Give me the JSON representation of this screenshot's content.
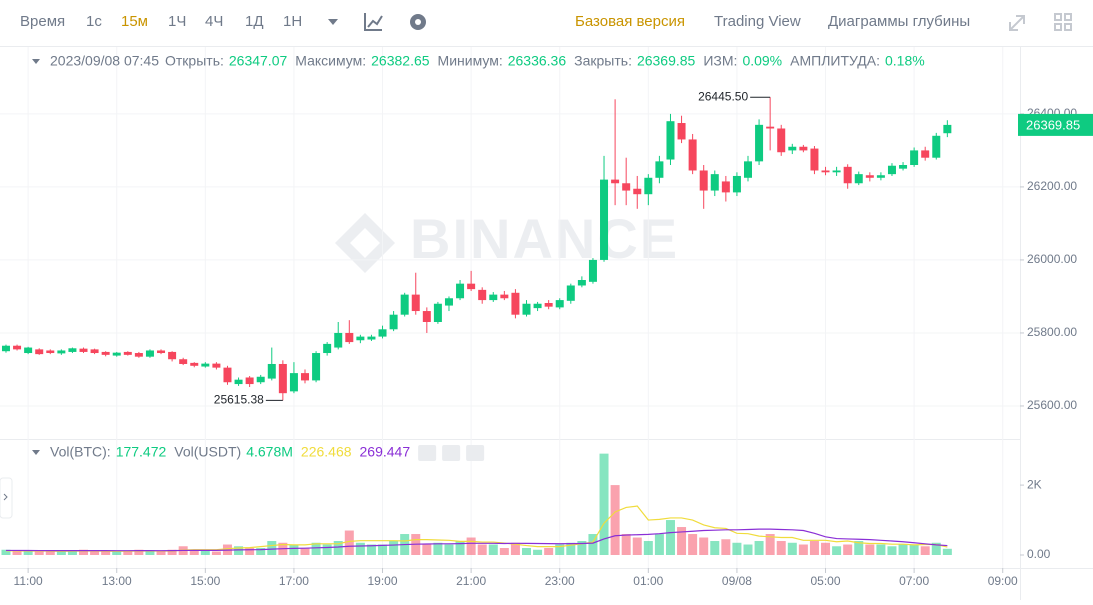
{
  "toolbar": {
    "intervals": [
      "Время",
      "1с",
      "15м",
      "1Ч",
      "4Ч",
      "1Д",
      "1Н"
    ],
    "views": [
      "Базовая версия",
      "Trading View",
      "Диаграммы глубины"
    ]
  },
  "chart_data": {
    "type": "candlestick",
    "header": {
      "datetime": "2023/09/08 07:45",
      "open_label": "Открыть:",
      "high_label": "Максимум:",
      "low_label": "Минимум:",
      "close_label": "Закрыть:",
      "change_label": "ИЗМ:",
      "change": "0.09%",
      "amplitude_label": "АМПЛИТУДА:",
      "amplitude": "0.18%"
    },
    "watermark": "BINANCE",
    "high_marker": "26445.50",
    "low_marker": "25615.38",
    "up_color": "#0ecb81",
    "down_color": "#f6465d",
    "ohlc": [
      [
        25750,
        25768,
        25746,
        25765
      ],
      [
        25765,
        25768,
        25752,
        25755
      ],
      [
        25745,
        25762,
        25742,
        25760
      ],
      [
        25755,
        25758,
        25740,
        25742
      ],
      [
        25752,
        25755,
        25742,
        25745
      ],
      [
        25744,
        25755,
        25740,
        25752
      ],
      [
        25748,
        25760,
        25745,
        25758
      ],
      [
        25757,
        25760,
        25745,
        25748
      ],
      [
        25755,
        25757,
        25742,
        25745
      ],
      [
        25748,
        25750,
        25736,
        25740
      ],
      [
        25738,
        25748,
        25735,
        25746
      ],
      [
        25748,
        25750,
        25738,
        25740
      ],
      [
        25745,
        25748,
        25732,
        25735
      ],
      [
        25735,
        25755,
        25732,
        25752
      ],
      [
        25752,
        25755,
        25742,
        25745
      ],
      [
        25748,
        25750,
        25722,
        25728
      ],
      [
        25728,
        25732,
        25712,
        25715
      ],
      [
        25718,
        25720,
        25706,
        25710
      ],
      [
        25708,
        25720,
        25705,
        25716
      ],
      [
        25716,
        25720,
        25700,
        25705
      ],
      [
        25705,
        25710,
        25658,
        25665
      ],
      [
        25660,
        25678,
        25655,
        25672
      ],
      [
        25678,
        25682,
        25652,
        25660
      ],
      [
        25665,
        25685,
        25660,
        25680
      ],
      [
        25675,
        25760,
        25670,
        25715
      ],
      [
        25715,
        25725,
        25615.38,
        25635
      ],
      [
        25640,
        25720,
        25635,
        25690
      ],
      [
        25690,
        25700,
        25662,
        25670
      ],
      [
        25670,
        25750,
        25665,
        25745
      ],
      [
        25745,
        25775,
        25738,
        25770
      ],
      [
        25760,
        25830,
        25755,
        25800
      ],
      [
        25800,
        25835,
        25770,
        25775
      ],
      [
        25780,
        25795,
        25772,
        25790
      ],
      [
        25782,
        25795,
        25778,
        25790
      ],
      [
        25790,
        25820,
        25785,
        25810
      ],
      [
        25810,
        25860,
        25805,
        25850
      ],
      [
        25850,
        25910,
        25845,
        25905
      ],
      [
        25905,
        25965,
        25850,
        25860
      ],
      [
        25860,
        25870,
        25800,
        25830
      ],
      [
        25830,
        25885,
        25825,
        25880
      ],
      [
        25875,
        25900,
        25860,
        25895
      ],
      [
        25895,
        25945,
        25890,
        25935
      ],
      [
        25935,
        25970,
        25915,
        25920
      ],
      [
        25918,
        25925,
        25880,
        25890
      ],
      [
        25890,
        25912,
        25885,
        25905
      ],
      [
        25905,
        25915,
        25890,
        25895
      ],
      [
        25910,
        25920,
        25840,
        25850
      ],
      [
        25850,
        25890,
        25845,
        25880
      ],
      [
        25868,
        25885,
        25860,
        25880
      ],
      [
        25882,
        25890,
        25865,
        25872
      ],
      [
        25870,
        25895,
        25865,
        25890
      ],
      [
        25888,
        25935,
        25880,
        25930
      ],
      [
        25930,
        25955,
        25925,
        25945
      ],
      [
        25940,
        26005,
        25935,
        26000
      ],
      [
        26000,
        26285,
        25995,
        26220
      ],
      [
        26220,
        26440,
        26150,
        26210
      ],
      [
        26210,
        26280,
        26150,
        26190
      ],
      [
        26195,
        26230,
        26140,
        26180
      ],
      [
        26180,
        26235,
        26150,
        26225
      ],
      [
        26225,
        26285,
        26210,
        26270
      ],
      [
        26275,
        26400,
        26260,
        26380
      ],
      [
        26375,
        26395,
        26320,
        26330
      ],
      [
        26330,
        26345,
        26235,
        26245
      ],
      [
        26245,
        26260,
        26140,
        26190
      ],
      [
        26190,
        26245,
        26175,
        26235
      ],
      [
        26215,
        26230,
        26160,
        26185
      ],
      [
        26185,
        26240,
        26175,
        26230
      ],
      [
        26225,
        26285,
        26215,
        26270
      ],
      [
        26270,
        26385,
        26260,
        26370
      ],
      [
        26365,
        26445.5,
        26300,
        26360
      ],
      [
        26360,
        26370,
        26285,
        26295
      ],
      [
        26300,
        26318,
        26290,
        26310
      ],
      [
        26310,
        26315,
        26295,
        26300
      ],
      [
        26305,
        26312,
        26235,
        26245
      ],
      [
        26245,
        26255,
        26232,
        26240
      ],
      [
        26240,
        26255,
        26230,
        26245
      ],
      [
        26255,
        26262,
        26195,
        26210
      ],
      [
        26210,
        26242,
        26205,
        26235
      ],
      [
        26232,
        26240,
        26215,
        26225
      ],
      [
        26225,
        26240,
        26218,
        26232
      ],
      [
        26235,
        26265,
        26230,
        26258
      ],
      [
        26250,
        26268,
        26245,
        26260
      ],
      [
        26260,
        26308,
        26255,
        26300
      ],
      [
        26300,
        26310,
        26272,
        26280
      ],
      [
        26280,
        26348,
        26275,
        26340
      ],
      [
        26347.07,
        26382.65,
        26336.36,
        26369.85
      ]
    ],
    "xlim": [
      -0.54,
      91.56
    ],
    "xticks": [
      {
        "value": 2,
        "label": "11:00"
      },
      {
        "value": 10,
        "label": "13:00"
      },
      {
        "value": 18,
        "label": "15:00"
      },
      {
        "value": 26,
        "label": "17:00"
      },
      {
        "value": 34,
        "label": "19:00"
      },
      {
        "value": 42,
        "label": "21:00"
      },
      {
        "value": 50,
        "label": "23:00"
      },
      {
        "value": 58,
        "label": "01:00"
      },
      {
        "value": 66,
        "label": "09/08"
      },
      {
        "value": 74,
        "label": "05:00"
      },
      {
        "value": 82,
        "label": "07:00"
      },
      {
        "value": 90,
        "label": "09:00"
      }
    ],
    "ylim": [
      25515,
      26575
    ],
    "yticks": [
      {
        "value": 25600,
        "label": "25600.00"
      },
      {
        "value": 25800,
        "label": "25800.00"
      },
      {
        "value": 26000,
        "label": "26000.00"
      },
      {
        "value": 26200,
        "label": "26200.00"
      },
      {
        "value": 26400,
        "label": "26400.00"
      }
    ],
    "volume": {
      "btc_label": "Vol(BTC):",
      "usdt_label": "Vol(USDT)",
      "usdt": "4.678M",
      "values": [
        150,
        120,
        100,
        120,
        100,
        100,
        120,
        150,
        100,
        100,
        100,
        120,
        150,
        100,
        100,
        150,
        250,
        150,
        120,
        100,
        300,
        250,
        200,
        200,
        400,
        350,
        300,
        200,
        350,
        300,
        400,
        700,
        350,
        300,
        300,
        400,
        600,
        600,
        300,
        350,
        300,
        400,
        500,
        300,
        300,
        200,
        350,
        200,
        150,
        200,
        300,
        350,
        400,
        600,
        2900,
        2000,
        600,
        500,
        400,
        600,
        1000,
        800,
        600,
        500,
        400,
        450,
        350,
        300,
        400,
        600,
        400,
        350,
        300,
        400,
        350,
        250,
        300,
        400,
        300,
        300,
        250,
        300,
        300,
        250,
        350,
        177.472
      ],
      "ylim": [
        0,
        3290
      ],
      "yticks": [
        {
          "value": 2000,
          "label": "2K"
        },
        {
          "value": 0,
          "label": "0.00"
        }
      ],
      "ma": [
        {
          "color": "#f0dc3c",
          "values": [
            120,
            118,
            115,
            118,
            110,
            108,
            110,
            115,
            112,
            110,
            108,
            110,
            115,
            115,
            112,
            115,
            140,
            150,
            150,
            150,
            180,
            200,
            210,
            240,
            270,
            300,
            290,
            290,
            320,
            320,
            320,
            390,
            410,
            410,
            410,
            410,
            400,
            440,
            440,
            430,
            420,
            390,
            390,
            370,
            370,
            340,
            310,
            270,
            240,
            240,
            240,
            280,
            320,
            370,
            910,
            1230,
            1360,
            1400,
            1000,
            1020,
            1060,
            1060,
            1000,
            860,
            780,
            760,
            620,
            610,
            540,
            520,
            500,
            500,
            420,
            420,
            420,
            380,
            400,
            350,
            330,
            330,
            310,
            310,
            290,
            300,
            300,
            226.468
          ]
        },
        {
          "color": "#8a2fd6",
          "values": [
            130,
            130,
            128,
            127,
            126,
            125,
            125,
            126,
            126,
            125,
            124,
            124,
            125,
            125,
            124,
            125,
            130,
            132,
            133,
            133,
            140,
            146,
            150,
            154,
            168,
            180,
            190,
            195,
            205,
            215,
            228,
            250,
            258,
            265,
            275,
            285,
            298,
            310,
            315,
            320,
            320,
            325,
            335,
            335,
            335,
            330,
            335,
            333,
            330,
            325,
            322,
            325,
            330,
            340,
            460,
            550,
            570,
            580,
            590,
            610,
            640,
            660,
            680,
            700,
            710,
            720,
            720,
            730,
            740,
            740,
            730,
            720,
            700,
            620,
            520,
            470,
            460,
            450,
            440,
            420,
            400,
            380,
            350,
            320,
            290,
            269.447
          ]
        }
      ]
    }
  }
}
